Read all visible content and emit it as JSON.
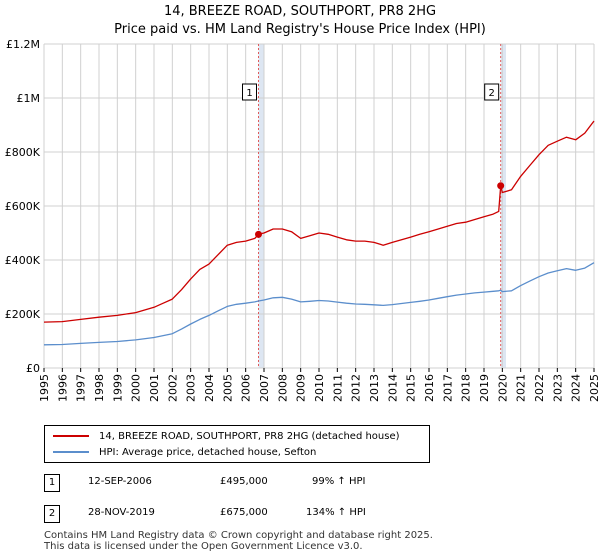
{
  "title": "14, BREEZE ROAD, SOUTHPORT, PR8 2HG",
  "subtitle": "Price paid vs. HM Land Registry's House Price Index (HPI)",
  "colors": {
    "property": "#cc0000",
    "hpi": "#5b8ecc",
    "shade": "#dde6f2",
    "grid": "#d0d0d0",
    "marker_line": "#e05a5a"
  },
  "chart_data": {
    "type": "line",
    "title": "14, BREEZE ROAD, SOUTHPORT, PR8 2HG",
    "xlabel": "",
    "ylabel": "",
    "xlim": [
      1995,
      2025
    ],
    "ylim": [
      0,
      1200000
    ],
    "y_ticks": [
      {
        "value": 0,
        "label": "£0"
      },
      {
        "value": 200000,
        "label": "£200K"
      },
      {
        "value": 400000,
        "label": "£400K"
      },
      {
        "value": 600000,
        "label": "£600K"
      },
      {
        "value": 800000,
        "label": "£800K"
      },
      {
        "value": 1000000,
        "label": "£1M"
      },
      {
        "value": 1200000,
        "label": "£1.2M"
      }
    ],
    "x_ticks": [
      "1995",
      "1996",
      "1997",
      "1998",
      "1999",
      "2000",
      "2001",
      "2002",
      "2003",
      "2004",
      "2005",
      "2006",
      "2007",
      "2008",
      "2009",
      "2010",
      "2011",
      "2012",
      "2013",
      "2014",
      "2015",
      "2016",
      "2017",
      "2018",
      "2019",
      "2020",
      "2021",
      "2022",
      "2023",
      "2024",
      "2025"
    ],
    "grid": true,
    "series": [
      {
        "name": "14, BREEZE ROAD, SOUTHPORT, PR8 2HG (detached house)",
        "color": "#cc0000",
        "x": [
          1995.0,
          1996.0,
          1997.0,
          1998.0,
          1999.0,
          2000.0,
          2001.0,
          2001.5,
          2002.0,
          2002.5,
          2003.0,
          2003.5,
          2004.0,
          2004.5,
          2005.0,
          2005.5,
          2006.0,
          2006.5,
          2006.7,
          2007.0,
          2007.5,
          2008.0,
          2008.5,
          2009.0,
          2009.5,
          2010.0,
          2010.5,
          2011.0,
          2011.5,
          2012.0,
          2012.5,
          2013.0,
          2013.5,
          2014.0,
          2014.5,
          2015.0,
          2015.5,
          2016.0,
          2016.5,
          2017.0,
          2017.5,
          2018.0,
          2018.5,
          2019.0,
          2019.5,
          2019.8,
          2019.91,
          2020.0,
          2020.5,
          2021.0,
          2021.5,
          2022.0,
          2022.5,
          2023.0,
          2023.5,
          2024.0,
          2024.5,
          2025.0
        ],
        "y": [
          170000,
          172000,
          180000,
          188000,
          195000,
          205000,
          225000,
          240000,
          255000,
          290000,
          330000,
          365000,
          385000,
          420000,
          455000,
          465000,
          470000,
          480000,
          495000,
          500000,
          515000,
          515000,
          505000,
          480000,
          490000,
          500000,
          495000,
          485000,
          475000,
          470000,
          470000,
          465000,
          455000,
          465000,
          475000,
          485000,
          495000,
          505000,
          515000,
          525000,
          535000,
          540000,
          550000,
          560000,
          570000,
          580000,
          675000,
          650000,
          660000,
          710000,
          750000,
          790000,
          825000,
          840000,
          855000,
          845000,
          870000,
          915000
        ]
      },
      {
        "name": "HPI: Average price, detached house, Sefton",
        "color": "#5b8ecc",
        "x": [
          1995.0,
          1996.0,
          1997.0,
          1998.0,
          1999.0,
          2000.0,
          2001.0,
          2001.5,
          2002.0,
          2002.5,
          2003.0,
          2003.5,
          2004.0,
          2004.5,
          2005.0,
          2005.5,
          2006.0,
          2006.5,
          2006.7,
          2007.0,
          2007.5,
          2008.0,
          2008.5,
          2009.0,
          2009.5,
          2010.0,
          2010.5,
          2011.0,
          2011.5,
          2012.0,
          2012.5,
          2013.0,
          2013.5,
          2014.0,
          2014.5,
          2015.0,
          2015.5,
          2016.0,
          2016.5,
          2017.0,
          2017.5,
          2018.0,
          2018.5,
          2019.0,
          2019.5,
          2019.8,
          2019.91,
          2020.0,
          2020.5,
          2021.0,
          2021.5,
          2022.0,
          2022.5,
          2023.0,
          2023.5,
          2024.0,
          2024.5,
          2025.0
        ],
        "y": [
          86000,
          87000,
          91000,
          95000,
          98000,
          104000,
          113000,
          120000,
          127000,
          144000,
          163000,
          180000,
          195000,
          212000,
          228000,
          236000,
          240000,
          245000,
          248000,
          252000,
          260000,
          262000,
          255000,
          245000,
          247000,
          250000,
          248000,
          244000,
          240000,
          237000,
          236000,
          234000,
          232000,
          235000,
          239000,
          243000,
          247000,
          252000,
          258000,
          264000,
          270000,
          274000,
          278000,
          281000,
          284000,
          286000,
          288000,
          283000,
          286000,
          305000,
          322000,
          338000,
          352000,
          360000,
          368000,
          362000,
          370000,
          390000
        ]
      }
    ],
    "annotations": [
      {
        "label": "1",
        "x": 2006.7,
        "y": 495000
      },
      {
        "label": "2",
        "x": 2019.91,
        "y": 675000
      }
    ],
    "shaded_regions": [
      [
        2006.7,
        2007.0
      ],
      [
        2019.91,
        2020.2
      ]
    ]
  },
  "legend": {
    "items": [
      {
        "label": "14, BREEZE ROAD, SOUTHPORT, PR8 2HG (detached house)"
      },
      {
        "label": "HPI: Average price, detached house, Sefton"
      }
    ]
  },
  "transactions": [
    {
      "num": "1",
      "date": "12-SEP-2006",
      "price": "£495,000",
      "hpi": "99% ↑ HPI"
    },
    {
      "num": "2",
      "date": "28-NOV-2019",
      "price": "£675,000",
      "hpi": "134% ↑ HPI"
    }
  ],
  "footer": {
    "line1": "Contains HM Land Registry data © Crown copyright and database right 2025.",
    "line2": "This data is licensed under the Open Government Licence v3.0."
  }
}
